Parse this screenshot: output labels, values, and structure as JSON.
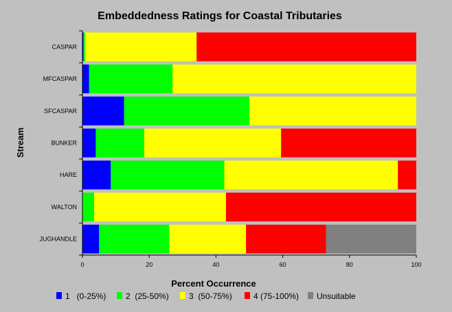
{
  "chart_data": {
    "type": "bar",
    "orientation": "horizontal",
    "stacked": true,
    "title": "Embeddedness Ratings for Coastal Tributaries",
    "xlabel": "Percent Occurrence",
    "ylabel": "Stream",
    "xlim": [
      0,
      100
    ],
    "xticks": [
      "0",
      "20",
      "40",
      "60",
      "80",
      "100"
    ],
    "grid": false,
    "legend_position": "bottom",
    "categories": [
      "CASPAR",
      "MFCASPAR",
      "SFCASPAR",
      "BUNKER",
      "HARE",
      "WALTON",
      "JUGHANDLE"
    ],
    "series": [
      {
        "name": "1   (0-25%)",
        "color": "#0000ff",
        "values": [
          0.3,
          2,
          12.5,
          4,
          8.5,
          0,
          5
        ]
      },
      {
        "name": "2  (25-50%)",
        "color": "#00ff00",
        "values": [
          0.5,
          25,
          37.5,
          14.5,
          34,
          3.5,
          21
        ]
      },
      {
        "name": "3  (50-75%)",
        "color": "#ffff00",
        "values": [
          33.4,
          73,
          50,
          41,
          52,
          39.5,
          23
        ]
      },
      {
        "name": "4 (75-100%)",
        "color": "#ff0000",
        "values": [
          65.8,
          0,
          0,
          40.5,
          5.5,
          57,
          24
        ]
      },
      {
        "name": "Unsuitable",
        "color": "#808080",
        "values": [
          0,
          0,
          0,
          0,
          0,
          0,
          27
        ]
      }
    ]
  }
}
